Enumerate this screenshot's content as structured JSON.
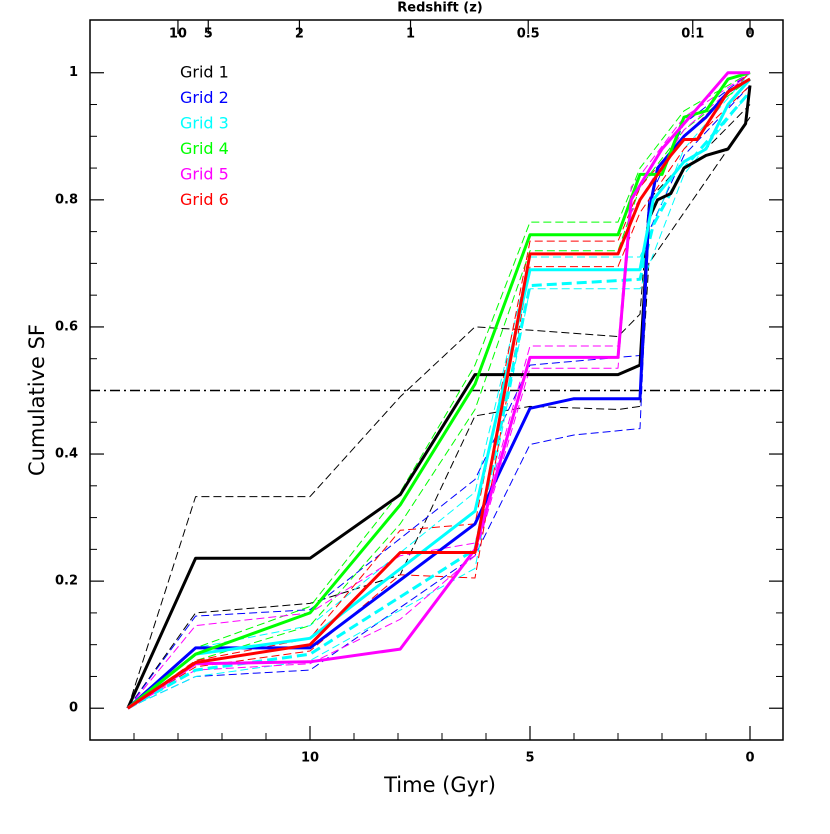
{
  "chart_data": {
    "type": "line",
    "xlabel": "Time (Gyr)",
    "ylabel": "Cumulative SF",
    "x2label": "Redshift (z)",
    "xlim": [
      15,
      -0.75
    ],
    "ylim": [
      -0.05,
      1.083
    ],
    "xticks": [
      10,
      5,
      0
    ],
    "xticks_minor": [
      14,
      13,
      12,
      11,
      9,
      8,
      7,
      6,
      4,
      3,
      2,
      1
    ],
    "yticks": [
      0,
      0.2,
      0.4,
      0.6,
      0.8,
      1
    ],
    "yticks_minor": [
      0.05,
      0.1,
      0.15,
      0.25,
      0.3,
      0.35,
      0.45,
      0.5,
      0.55,
      0.65,
      0.7,
      0.75,
      0.85,
      0.9,
      0.95
    ],
    "x2ticks": [
      10,
      5,
      2,
      1,
      0.5,
      0.1,
      0
    ],
    "hline": 0.5,
    "series": [
      {
        "color": "#000000",
        "style": "dashed",
        "x": [
          14.14,
          12.6,
          10,
          7.95,
          6.25,
          5,
          3,
          2.5,
          2.3,
          1.5,
          1,
          0
        ],
        "values": [
          0,
          0.333,
          0.333,
          0.49,
          0.6,
          0.595,
          0.585,
          0.62,
          0.8,
          0.86,
          0.88,
          0.95
        ]
      },
      {
        "color": "#000000",
        "style": "dashed",
        "x": [
          14.14,
          12.6,
          10,
          7.95,
          6.25,
          5,
          3,
          2.5,
          2.3,
          1.5,
          1,
          0
        ],
        "values": [
          0,
          0.15,
          0.165,
          0.21,
          0.46,
          0.475,
          0.47,
          0.475,
          0.7,
          0.78,
          0.83,
          0.93
        ]
      },
      {
        "color": "#0000ff",
        "style": "dashed",
        "x": [
          14.14,
          12.6,
          10,
          6.25,
          5,
          2.5,
          2.3,
          1.5,
          0
        ],
        "values": [
          0,
          0.145,
          0.155,
          0.36,
          0.54,
          0.555,
          0.8,
          0.92,
          1.0
        ]
      },
      {
        "color": "#0000ff",
        "style": "dashed",
        "x": [
          14.14,
          12.6,
          10,
          6.25,
          5,
          4,
          2.5,
          2.3,
          1.5,
          0
        ],
        "values": [
          0,
          0.05,
          0.06,
          0.24,
          0.415,
          0.43,
          0.44,
          0.75,
          0.87,
          0.98
        ]
      },
      {
        "color": "#00ffff",
        "style": "dashed",
        "x": [
          14.14,
          12.6,
          10,
          6.25,
          5,
          2.5,
          1.5,
          0
        ],
        "values": [
          0,
          0.095,
          0.13,
          0.34,
          0.71,
          0.71,
          0.88,
          1.0
        ]
      },
      {
        "color": "#00ffff",
        "style": "dashed",
        "x": [
          14.14,
          12.6,
          10,
          6.25,
          5,
          2.5,
          1.5,
          0
        ],
        "values": [
          0,
          0.05,
          0.075,
          0.22,
          0.66,
          0.66,
          0.84,
          0.97
        ]
      },
      {
        "color": "#00ff00",
        "style": "dashed",
        "x": [
          14.14,
          12.6,
          10,
          7.95,
          6.25,
          5,
          3,
          2.5,
          1.5,
          0
        ],
        "values": [
          0,
          0.095,
          0.16,
          0.34,
          0.54,
          0.765,
          0.765,
          0.85,
          0.94,
          1.0
        ]
      },
      {
        "color": "#00ff00",
        "style": "dashed",
        "x": [
          14.14,
          12.6,
          10,
          7.95,
          6.25,
          5,
          3,
          2.5,
          1.5,
          0
        ],
        "values": [
          0,
          0.075,
          0.13,
          0.29,
          0.47,
          0.72,
          0.72,
          0.82,
          0.91,
          0.99
        ]
      },
      {
        "color": "#ff00ff",
        "style": "dashed",
        "x": [
          14.14,
          12.6,
          10,
          7.95,
          6.25,
          5,
          3,
          2.7,
          1.5,
          0
        ],
        "values": [
          0,
          0.13,
          0.15,
          0.24,
          0.26,
          0.57,
          0.57,
          0.82,
          0.93,
          1.0
        ]
      },
      {
        "color": "#ff00ff",
        "style": "dashed",
        "x": [
          14.14,
          12.6,
          10,
          7.95,
          6.25,
          5,
          3,
          2.7,
          1.5,
          0
        ],
        "values": [
          0,
          0.06,
          0.07,
          0.14,
          0.24,
          0.535,
          0.535,
          0.78,
          0.91,
          1.0
        ]
      },
      {
        "color": "#ff0000",
        "style": "dashed",
        "x": [
          14.14,
          12.6,
          10,
          7.95,
          6.25,
          5,
          3,
          2.5,
          1.5,
          0
        ],
        "values": [
          0,
          0.075,
          0.11,
          0.28,
          0.29,
          0.735,
          0.735,
          0.82,
          0.9,
          1.0
        ]
      },
      {
        "color": "#ff0000",
        "style": "dashed",
        "x": [
          14.14,
          12.6,
          10,
          7.95,
          6.25,
          5,
          3,
          2.5,
          1.5,
          0
        ],
        "values": [
          0,
          0.065,
          0.09,
          0.21,
          0.205,
          0.695,
          0.695,
          0.78,
          0.88,
          0.98
        ]
      },
      {
        "color": "#00ffff",
        "style": "thick-dashed",
        "x": [
          14.14,
          12.6,
          10,
          6.25,
          5,
          2.5,
          2.2,
          1.5,
          0
        ],
        "values": [
          0,
          0.06,
          0.085,
          0.25,
          0.665,
          0.675,
          0.76,
          0.85,
          0.97
        ]
      },
      {
        "name": "Grid 1",
        "color": "#000000",
        "style": "solid",
        "x": [
          14.14,
          12.6,
          10,
          7.95,
          6.25,
          5,
          3,
          2.5,
          2.3,
          2.1,
          1.8,
          1.5,
          1,
          0.5,
          0.1,
          0
        ],
        "values": [
          0,
          0.236,
          0.236,
          0.336,
          0.525,
          0.525,
          0.525,
          0.54,
          0.77,
          0.8,
          0.81,
          0.85,
          0.87,
          0.88,
          0.92,
          0.98
        ]
      },
      {
        "name": "Grid 2",
        "color": "#0000ff",
        "style": "solid",
        "x": [
          14.14,
          12.6,
          10,
          6.25,
          5,
          4,
          2.5,
          2.3,
          2.1,
          1.5,
          1,
          0.5,
          0
        ],
        "values": [
          0,
          0.095,
          0.095,
          0.29,
          0.472,
          0.487,
          0.487,
          0.78,
          0.85,
          0.9,
          0.93,
          0.97,
          0.99
        ]
      },
      {
        "name": "Grid 3",
        "color": "#00ffff",
        "style": "solid",
        "x": [
          14.14,
          12.6,
          10,
          6.25,
          5,
          2.5,
          2.2,
          1.5,
          1,
          0.5,
          0
        ],
        "values": [
          0,
          0.085,
          0.11,
          0.31,
          0.69,
          0.69,
          0.8,
          0.86,
          0.88,
          0.95,
          0.99
        ]
      },
      {
        "name": "Grid 4",
        "color": "#00ff00",
        "style": "solid",
        "x": [
          14.14,
          12.6,
          10,
          7.95,
          6.25,
          5,
          3,
          2.5,
          2,
          1.5,
          1,
          0.5,
          0
        ],
        "values": [
          0,
          0.085,
          0.15,
          0.32,
          0.51,
          0.745,
          0.745,
          0.84,
          0.84,
          0.93,
          0.94,
          0.99,
          1.0
        ]
      },
      {
        "name": "Grid 5",
        "color": "#ff00ff",
        "style": "solid",
        "x": [
          14.14,
          12.6,
          10,
          7.95,
          6.25,
          5,
          3,
          2.7,
          2,
          1.5,
          1,
          0.5,
          0
        ],
        "values": [
          0,
          0.07,
          0.073,
          0.093,
          0.25,
          0.552,
          0.552,
          0.8,
          0.88,
          0.92,
          0.96,
          1.0,
          1.0
        ]
      },
      {
        "name": "Grid 6",
        "color": "#ff0000",
        "style": "solid",
        "x": [
          14.14,
          12.6,
          10,
          7.95,
          6.25,
          5,
          3,
          2.5,
          1.8,
          1.5,
          1.2,
          0.5,
          0
        ],
        "values": [
          0,
          0.072,
          0.1,
          0.245,
          0.245,
          0.715,
          0.715,
          0.8,
          0.87,
          0.895,
          0.895,
          0.97,
          0.99
        ]
      }
    ]
  }
}
